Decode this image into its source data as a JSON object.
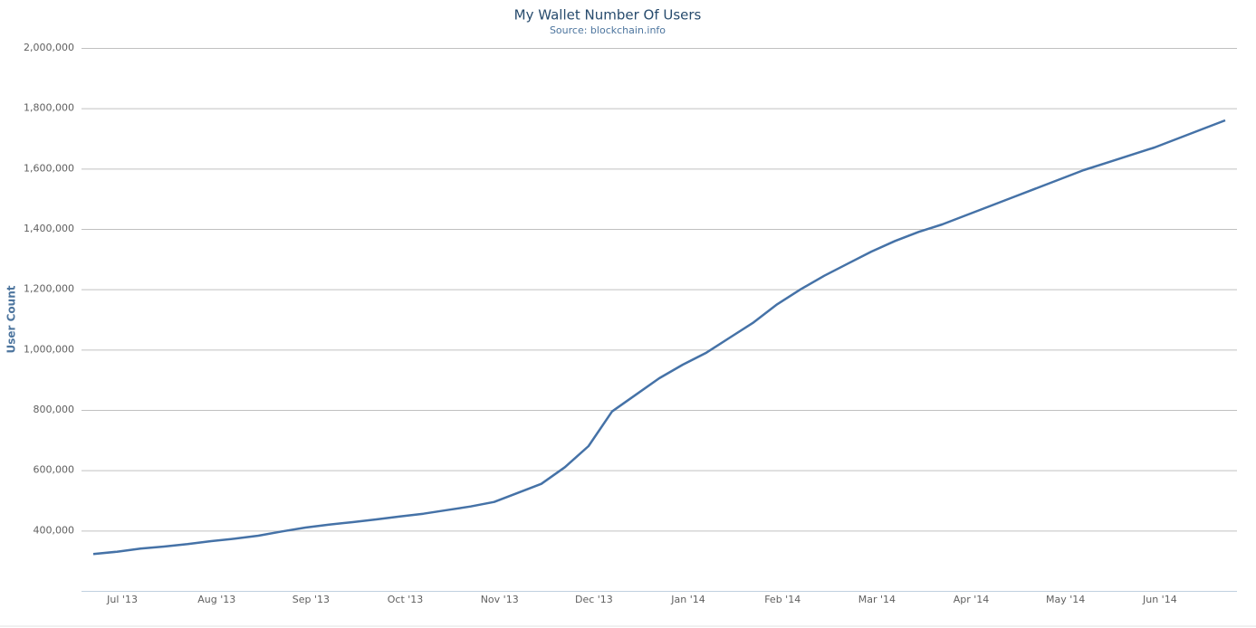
{
  "chart_data": {
    "type": "line",
    "title": "My Wallet Number Of Users",
    "subtitle": "Source: blockchain.info",
    "y_label": "User Count",
    "color": "#4572a7",
    "grid": true,
    "categories": [
      null,
      "Jul '13",
      null,
      null,
      null,
      "Aug '13",
      null,
      null,
      null,
      "Sep '13",
      null,
      null,
      null,
      "Oct '13",
      null,
      null,
      null,
      "Nov '13",
      null,
      null,
      null,
      "Dec '13",
      null,
      null,
      null,
      "Jan '14",
      null,
      null,
      null,
      "Feb '14",
      null,
      null,
      null,
      "Mar '14",
      null,
      null,
      null,
      "Apr '14",
      null,
      null,
      null,
      "May '14",
      null,
      null,
      null,
      "Jun '14",
      null,
      null,
      null
    ],
    "values": [
      322000,
      330000,
      340000,
      347000,
      355000,
      365000,
      373000,
      383000,
      397000,
      410000,
      420000,
      428000,
      437000,
      447000,
      456000,
      468000,
      480000,
      495000,
      525000,
      555000,
      610000,
      680000,
      795000,
      850000,
      905000,
      950000,
      990000,
      1040000,
      1090000,
      1150000,
      1200000,
      1245000,
      1285000,
      1325000,
      1360000,
      1390000,
      1415000,
      1445000,
      1475000,
      1505000,
      1535000,
      1565000,
      1595000,
      1620000,
      1645000,
      1670000,
      1700000,
      1730000,
      1760000
    ],
    "ylim": [
      200000,
      2000000
    ],
    "yticks": [
      {
        "value": 400000,
        "label": "400,000"
      },
      {
        "value": 600000,
        "label": "600,000"
      },
      {
        "value": 800000,
        "label": "800,000"
      },
      {
        "value": 1000000,
        "label": "1,000,000"
      },
      {
        "value": 1200000,
        "label": "1,200,000"
      },
      {
        "value": 1400000,
        "label": "1,400,000"
      },
      {
        "value": 1600000,
        "label": "1,600,000"
      },
      {
        "value": 1800000,
        "label": "1,800,000"
      },
      {
        "value": 2000000,
        "label": "2,000,000"
      }
    ]
  }
}
